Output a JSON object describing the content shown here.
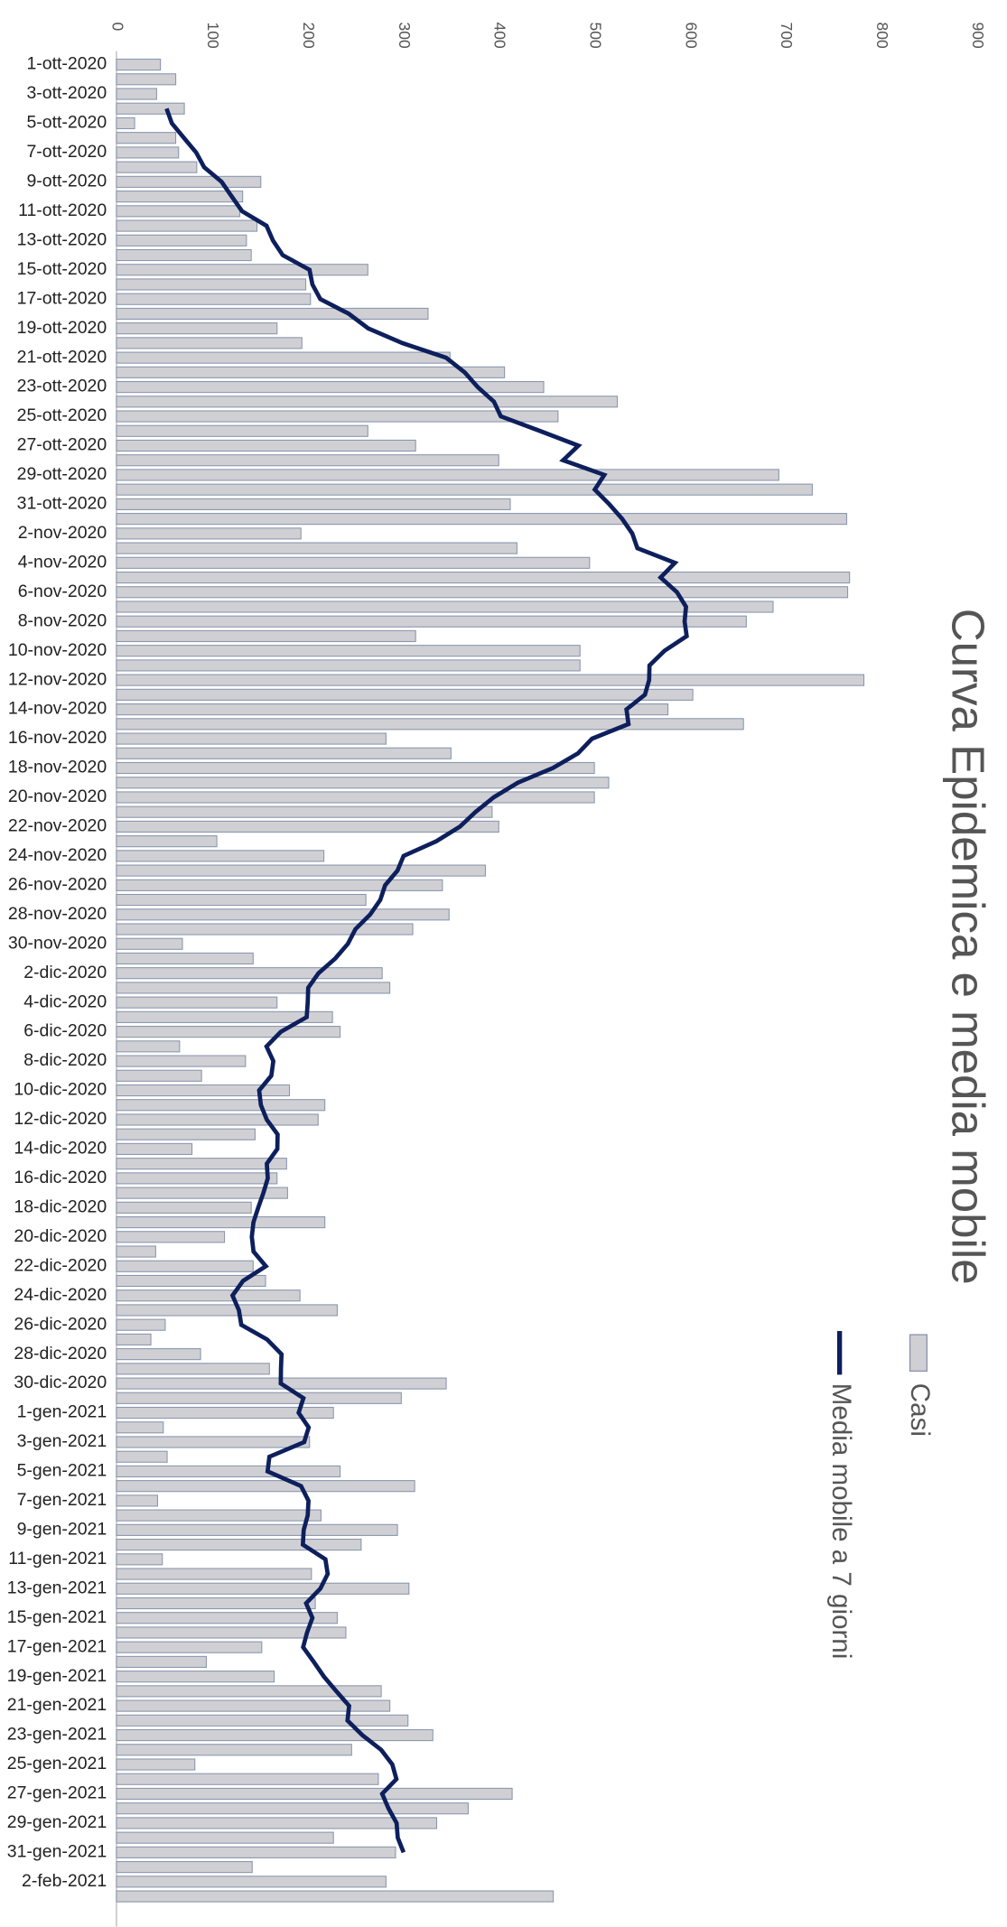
{
  "chart_data": {
    "type": "bar",
    "orientation": "horizontal",
    "title": "Curva Epidemica e media mobile",
    "categories": [
      "1-ott-2020",
      null,
      "3-ott-2020",
      null,
      "5-ott-2020",
      null,
      "7-ott-2020",
      null,
      "9-ott-2020",
      null,
      "11-ott-2020",
      null,
      "13-ott-2020",
      null,
      "15-ott-2020",
      null,
      "17-ott-2020",
      null,
      "19-ott-2020",
      null,
      "21-ott-2020",
      null,
      "23-ott-2020",
      null,
      "25-ott-2020",
      null,
      "27-ott-2020",
      null,
      "29-ott-2020",
      null,
      "31-ott-2020",
      null,
      "2-nov-2020",
      null,
      "4-nov-2020",
      null,
      "6-nov-2020",
      null,
      "8-nov-2020",
      null,
      "10-nov-2020",
      null,
      "12-nov-2020",
      null,
      "14-nov-2020",
      null,
      "16-nov-2020",
      null,
      "18-nov-2020",
      null,
      "20-nov-2020",
      null,
      "22-nov-2020",
      null,
      "24-nov-2020",
      null,
      "26-nov-2020",
      null,
      "28-nov-2020",
      null,
      "30-nov-2020",
      null,
      "2-dic-2020",
      null,
      "4-dic-2020",
      null,
      "6-dic-2020",
      null,
      "8-dic-2020",
      null,
      "10-dic-2020",
      null,
      "12-dic-2020",
      null,
      "14-dic-2020",
      null,
      "16-dic-2020",
      null,
      "18-dic-2020",
      null,
      "20-dic-2020",
      null,
      "22-dic-2020",
      null,
      "24-dic-2020",
      null,
      "26-dic-2020",
      null,
      "28-dic-2020",
      null,
      "30-dic-2020",
      null,
      "1-gen-2021",
      null,
      "3-gen-2021",
      null,
      "5-gen-2021",
      null,
      "7-gen-2021",
      null,
      "9-gen-2021",
      null,
      "11-gen-2021",
      null,
      "13-gen-2021",
      null,
      "15-gen-2021",
      null,
      "17-gen-2021",
      null,
      "19-gen-2021",
      null,
      "21-gen-2021",
      null,
      "23-gen-2021",
      null,
      "25-gen-2021",
      null,
      "27-gen-2021",
      null,
      "29-gen-2021",
      null,
      "31-gen-2021",
      null,
      "2-feb-2021",
      null
    ],
    "series": [
      {
        "name": "Casi",
        "type": "bar",
        "color": "#d0d0d4",
        "values": [
          46,
          62,
          42,
          71,
          19,
          62,
          65,
          84,
          151,
          132,
          129,
          147,
          136,
          141,
          263,
          198,
          203,
          326,
          168,
          194,
          349,
          406,
          447,
          524,
          462,
          263,
          313,
          400,
          693,
          728,
          412,
          764,
          193,
          419,
          495,
          767,
          765,
          687,
          659,
          313,
          485,
          485,
          782,
          603,
          577,
          656,
          282,
          350,
          500,
          515,
          500,
          393,
          400,
          105,
          217,
          386,
          341,
          261,
          348,
          310,
          69,
          143,
          278,
          286,
          168,
          226,
          234,
          66,
          135,
          89,
          181,
          218,
          211,
          145,
          79,
          178,
          168,
          179,
          141,
          218,
          113,
          41,
          143,
          156,
          192,
          231,
          51,
          36,
          88,
          160,
          345,
          298,
          227,
          49,
          202,
          53,
          234,
          312,
          43,
          214,
          294,
          256,
          48,
          204,
          306,
          208,
          231,
          240,
          152,
          94,
          165,
          277,
          286,
          305,
          331,
          246,
          82,
          274,
          414,
          368,
          335,
          227,
          292,
          142,
          282,
          457
        ]
      },
      {
        "name": "Media mobile a 7 giorni",
        "type": "line",
        "color": "#0d1f5c",
        "values": [
          null,
          null,
          null,
          52.4,
          57.9,
          70.6,
          83.4,
          91.7,
          110,
          120.6,
          131.4,
          157,
          163.7,
          173.9,
          202,
          205,
          213.3,
          243,
          263.4,
          299,
          344.9,
          364.3,
          377.9,
          394.9,
          402.1,
          443.1,
          483.3,
          467.3,
          510.4,
          500.4,
          515.6,
          529.1,
          539.7,
          545,
          584.3,
          569.3,
          586.4,
          595.9,
          594.4,
          596.6,
          573.4,
          557.7,
          557.3,
          552.9,
          533.6,
          535.7,
          497.6,
          482.9,
          456.6,
          420,
          394.7,
          375.7,
          359.4,
          334.6,
          300.4,
          294,
          281.1,
          276,
          265.4,
          250,
          242.1,
          228.9,
          211.4,
          200.6,
          200.1,
          199,
          172,
          157,
          164.1,
          162,
          149.3,
          151.1,
          157.3,
          168.6,
          168.3,
          157.3,
          158.3,
          153.7,
          148.3,
          143.3,
          141.6,
          143.4,
          156.3,
          132.4,
          121.4,
          128.1,
          130.6,
          157.6,
          172.7,
          172.1,
          171.9,
          195.6,
          190.6,
          201.1,
          196.4,
          160,
          158.1,
          193.1,
          200.9,
          200.1,
          195.9,
          195,
          218.6,
          221,
          213.3,
          198.4,
          205,
          199.4,
          195.3,
          206.4,
          217,
          230,
          243.4,
          241.7,
          257.3,
          276.9,
          288.6,
          292.9,
          278,
          284.6,
          293.1,
          294.3,
          300.4,
          null,
          null,
          null
        ]
      }
    ],
    "xlim": [
      0,
      900
    ],
    "xticks": [
      0,
      100,
      200,
      300,
      400,
      500,
      600,
      700,
      800,
      900
    ],
    "grid": false
  }
}
